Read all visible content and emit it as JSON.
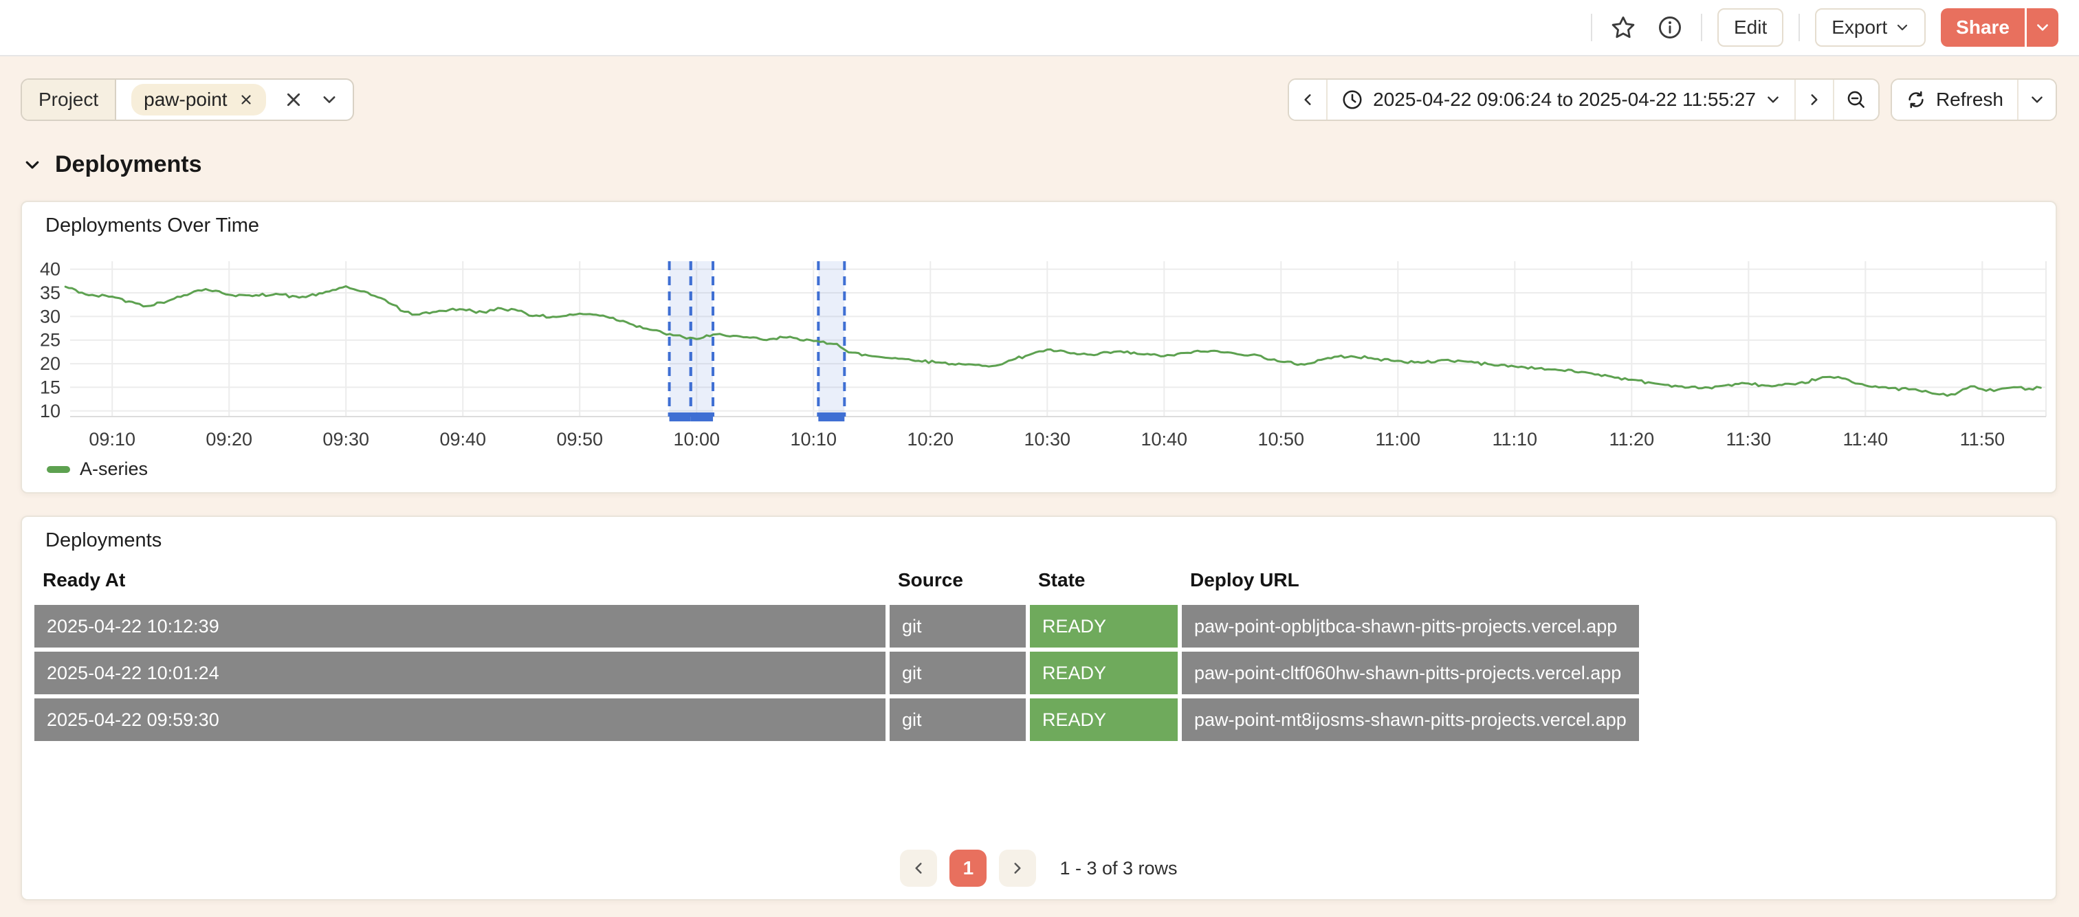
{
  "colors": {
    "accent": "#E8705E",
    "page_bg": "#FAF1E8",
    "panel_bg": "#FFFFFF",
    "row_gray": "#878787",
    "state_green": "#6FAA5C",
    "series_green": "#5DA150",
    "annotation_blue": "#3F6FD3"
  },
  "toolbar": {
    "star_icon": "star-icon",
    "info_icon": "info-icon",
    "edit_label": "Edit",
    "export_label": "Export",
    "share_label": "Share"
  },
  "filters": {
    "key_label": "Project",
    "value_pill": "paw-point",
    "pill_remove_icon": "x",
    "clear_icon": "x",
    "caret_icon": "chevron-down"
  },
  "timepicker": {
    "range_text": "2025-04-22 09:06:24 to 2025-04-22 11:55:27",
    "refresh_label": "Refresh"
  },
  "section": {
    "title": "Deployments"
  },
  "chart_panel": {
    "title": "Deployments Over Time"
  },
  "chart_data": {
    "type": "line",
    "title": "Deployments Over Time",
    "x_range": [
      "09:06:24",
      "11:55:27"
    ],
    "x_ticks": [
      "09:10",
      "09:20",
      "09:30",
      "09:40",
      "09:50",
      "10:00",
      "10:10",
      "10:20",
      "10:30",
      "10:40",
      "10:50",
      "11:00",
      "11:10",
      "11:20",
      "11:30",
      "11:40",
      "11:50"
    ],
    "y_ticks": [
      40,
      35,
      30,
      25,
      20,
      15,
      10
    ],
    "ylim": [
      8.8,
      41.7
    ],
    "grid": true,
    "legend_position": "bottom-left",
    "annotations": {
      "color": "#3F6FD3",
      "fill": "rgba(63,111,211,0.11)",
      "regions": [
        {
          "from": "09:57:40",
          "to": "09:59:30"
        },
        {
          "from": "09:59:30",
          "to": "10:01:24"
        },
        {
          "from": "10:10:25",
          "to": "10:12:39"
        }
      ]
    },
    "series": [
      {
        "name": "A-series",
        "color": "#5DA150",
        "points": [
          [
            "09:06",
            36.3
          ],
          [
            "09:08",
            34.5
          ],
          [
            "09:10",
            34.2
          ],
          [
            "09:12",
            32.8
          ],
          [
            "09:13",
            32.2
          ],
          [
            "09:15",
            33.5
          ],
          [
            "09:17",
            35.3
          ],
          [
            "09:18",
            35.8
          ],
          [
            "09:20",
            34.6
          ],
          [
            "09:22",
            34.3
          ],
          [
            "09:24",
            34.8
          ],
          [
            "09:26",
            34.0
          ],
          [
            "09:28",
            34.9
          ],
          [
            "09:30",
            36.4
          ],
          [
            "09:31",
            35.5
          ],
          [
            "09:33",
            33.9
          ],
          [
            "09:34",
            32.5
          ],
          [
            "09:35",
            31.0
          ],
          [
            "09:36",
            30.4
          ],
          [
            "09:38",
            31.2
          ],
          [
            "09:40",
            31.5
          ],
          [
            "09:42",
            30.8
          ],
          [
            "09:43",
            31.8
          ],
          [
            "09:45",
            31.2
          ],
          [
            "09:46",
            30.1
          ],
          [
            "09:48",
            29.9
          ],
          [
            "09:50",
            30.6
          ],
          [
            "09:52",
            30.2
          ],
          [
            "09:54",
            28.8
          ],
          [
            "09:56",
            27.2
          ],
          [
            "09:58",
            26.0
          ],
          [
            "10:00",
            25.2
          ],
          [
            "10:02",
            26.3
          ],
          [
            "10:04",
            25.6
          ],
          [
            "10:06",
            25.0
          ],
          [
            "10:08",
            25.7
          ],
          [
            "10:10",
            24.8
          ],
          [
            "10:12",
            24.2
          ],
          [
            "10:13",
            22.4
          ],
          [
            "10:15",
            21.6
          ],
          [
            "10:17",
            21.2
          ],
          [
            "10:19",
            20.6
          ],
          [
            "10:21",
            20.2
          ],
          [
            "10:23",
            19.8
          ],
          [
            "10:25",
            19.4
          ],
          [
            "10:27",
            20.8
          ],
          [
            "10:29",
            22.4
          ],
          [
            "10:30",
            23.0
          ],
          [
            "10:32",
            22.2
          ],
          [
            "10:34",
            21.8
          ],
          [
            "10:36",
            22.6
          ],
          [
            "10:38",
            22.0
          ],
          [
            "10:40",
            21.6
          ],
          [
            "10:42",
            22.3
          ],
          [
            "10:44",
            22.7
          ],
          [
            "10:46",
            22.2
          ],
          [
            "10:48",
            21.8
          ],
          [
            "10:50",
            20.4
          ],
          [
            "10:52",
            19.8
          ],
          [
            "10:54",
            21.2
          ],
          [
            "10:56",
            21.6
          ],
          [
            "10:58",
            21.0
          ],
          [
            "11:00",
            20.6
          ],
          [
            "11:02",
            20.2
          ],
          [
            "11:04",
            20.8
          ],
          [
            "11:06",
            20.4
          ],
          [
            "11:08",
            19.8
          ],
          [
            "11:10",
            19.4
          ],
          [
            "11:12",
            19.0
          ],
          [
            "11:14",
            18.6
          ],
          [
            "11:16",
            18.2
          ],
          [
            "11:18",
            17.4
          ],
          [
            "11:20",
            16.6
          ],
          [
            "11:22",
            15.8
          ],
          [
            "11:24",
            15.2
          ],
          [
            "11:26",
            14.8
          ],
          [
            "11:28",
            15.4
          ],
          [
            "11:30",
            15.8
          ],
          [
            "11:32",
            15.2
          ],
          [
            "11:34",
            15.6
          ],
          [
            "11:36",
            16.8
          ],
          [
            "11:37",
            17.2
          ],
          [
            "11:38",
            16.9
          ],
          [
            "11:40",
            15.4
          ],
          [
            "11:42",
            14.8
          ],
          [
            "11:44",
            14.6
          ],
          [
            "11:46",
            13.6
          ],
          [
            "11:47",
            13.2
          ],
          [
            "11:48",
            14.0
          ],
          [
            "11:49",
            15.2
          ],
          [
            "11:50",
            14.6
          ],
          [
            "11:51",
            14.2
          ],
          [
            "11:52",
            14.8
          ],
          [
            "11:53",
            15.0
          ],
          [
            "11:54",
            14.7
          ],
          [
            "11:55",
            14.9
          ]
        ]
      }
    ],
    "legend": [
      {
        "label": "A-series",
        "color": "#5DA150"
      }
    ]
  },
  "table_panel": {
    "title": "Deployments",
    "columns": [
      "Ready At",
      "Source",
      "State",
      "Deploy URL"
    ],
    "rows": [
      {
        "ready_at": "2025-04-22 10:12:39",
        "source": "git",
        "state": "READY",
        "deploy_url": "paw-point-opbljtbca-shawn-pitts-projects.vercel.app"
      },
      {
        "ready_at": "2025-04-22 10:01:24",
        "source": "git",
        "state": "READY",
        "deploy_url": "paw-point-cltf060hw-shawn-pitts-projects.vercel.app"
      },
      {
        "ready_at": "2025-04-22 09:59:30",
        "source": "git",
        "state": "READY",
        "deploy_url": "paw-point-mt8ijosms-shawn-pitts-projects.vercel.app"
      }
    ],
    "pagination": {
      "prev": "<",
      "current_page": "1",
      "next": ">",
      "summary": "1 - 3 of 3 rows"
    }
  }
}
